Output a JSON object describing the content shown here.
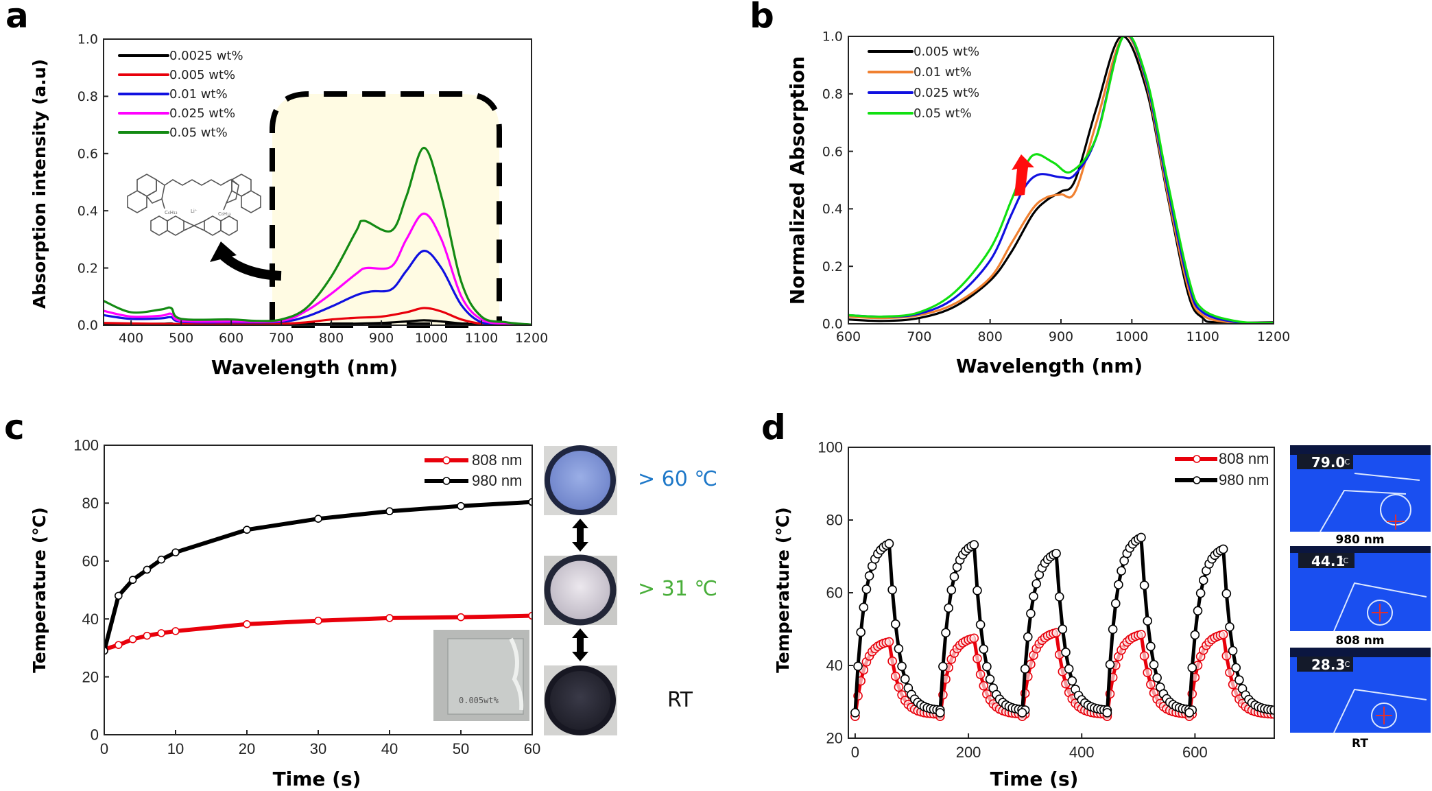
{
  "figure": {
    "panels": [
      "a",
      "b",
      "c",
      "d"
    ]
  },
  "colors": {
    "black": "#000000",
    "red": "#e8000b",
    "blue": "#1010e0",
    "magenta": "#ff00ff",
    "green_dark": "#138a13",
    "orange": "#f08030",
    "green_bright": "#10e010",
    "highlight_fill": "#fffbe3",
    "label_blue": "#1e78c8",
    "label_green": "#49ae3a"
  },
  "chart_data": [
    {
      "panel": "a",
      "type": "line",
      "title": "",
      "xlabel": "Wavelength (nm)",
      "ylabel": "Absorption intensity (a.u)",
      "xlim": [
        345,
        1200
      ],
      "ylim": [
        0.0,
        1.0
      ],
      "xticks": [
        400,
        500,
        600,
        700,
        800,
        900,
        1000,
        1100,
        1200
      ],
      "xtick_labels": [
        "400",
        "500",
        "600",
        "700",
        "800",
        "900",
        "1000",
        "1100",
        "1200"
      ],
      "yticks": [
        0.0,
        0.2,
        0.4,
        0.6,
        0.8,
        1.0
      ],
      "ytick_labels": [
        "0.0",
        "0.2",
        "0.4",
        "0.6",
        "0.8",
        "1.0"
      ],
      "legend_position": "top-left",
      "annotations": [
        "dashed highlight box over 720–1150 nm",
        "curved arrow pointing to molecular structure (cyanine dye cation with Li+ and borate anion)"
      ],
      "series": [
        {
          "name": "0.0025 wt%",
          "color_key": "black",
          "x": [
            345,
            400,
            460,
            480,
            500,
            600,
            700,
            800,
            900,
            950,
            985,
            1020,
            1060,
            1100,
            1200
          ],
          "y": [
            0.005,
            0.004,
            0.005,
            0.006,
            0.003,
            0.003,
            0.003,
            0.004,
            0.008,
            0.013,
            0.017,
            0.013,
            0.006,
            0.002,
            0.001
          ]
        },
        {
          "name": "0.005 wt%",
          "color_key": "red",
          "x": [
            345,
            400,
            500,
            600,
            700,
            750,
            800,
            850,
            900,
            950,
            985,
            1020,
            1060,
            1100,
            1150,
            1200
          ],
          "y": [
            0.008,
            0.006,
            0.004,
            0.004,
            0.005,
            0.01,
            0.02,
            0.026,
            0.03,
            0.045,
            0.06,
            0.048,
            0.02,
            0.005,
            0.002,
            0.001
          ]
        },
        {
          "name": "0.01 wt%",
          "color_key": "blue",
          "x": [
            345,
            400,
            460,
            480,
            500,
            600,
            700,
            750,
            800,
            850,
            880,
            920,
            950,
            985,
            1020,
            1060,
            1100,
            1150,
            1200
          ],
          "y": [
            0.035,
            0.022,
            0.024,
            0.028,
            0.012,
            0.01,
            0.012,
            0.03,
            0.065,
            0.105,
            0.118,
            0.125,
            0.19,
            0.26,
            0.2,
            0.07,
            0.01,
            0.002,
            0.001
          ]
        },
        {
          "name": "0.025 wt%",
          "color_key": "magenta",
          "x": [
            345,
            400,
            460,
            480,
            500,
            600,
            700,
            750,
            800,
            850,
            870,
            920,
            950,
            985,
            1020,
            1060,
            1100,
            1150,
            1200
          ],
          "y": [
            0.05,
            0.03,
            0.033,
            0.04,
            0.015,
            0.013,
            0.015,
            0.05,
            0.11,
            0.18,
            0.2,
            0.205,
            0.3,
            0.39,
            0.3,
            0.1,
            0.02,
            0.004,
            0.001
          ]
        },
        {
          "name": "0.05 wt%",
          "color_key": "green_dark",
          "x": [
            345,
            400,
            460,
            480,
            500,
            600,
            650,
            700,
            750,
            800,
            850,
            865,
            920,
            950,
            985,
            1020,
            1060,
            1100,
            1150,
            1200
          ],
          "y": [
            0.085,
            0.045,
            0.055,
            0.06,
            0.022,
            0.02,
            0.015,
            0.02,
            0.06,
            0.17,
            0.33,
            0.365,
            0.33,
            0.45,
            0.62,
            0.45,
            0.15,
            0.03,
            0.01,
            0.002
          ]
        }
      ]
    },
    {
      "panel": "b",
      "type": "line",
      "title": "",
      "xlabel": "Wavelength (nm)",
      "ylabel": "Normalized Absorption",
      "xlim": [
        600,
        1200
      ],
      "ylim": [
        0.0,
        1.0
      ],
      "xticks": [
        600,
        700,
        800,
        900,
        1000,
        1100,
        1200
      ],
      "xtick_labels": [
        "600",
        "700",
        "800",
        "900",
        "1000",
        "1100",
        "1200"
      ],
      "yticks": [
        0.0,
        0.2,
        0.4,
        0.6,
        0.8,
        1.0
      ],
      "ytick_labels": [
        "0.0",
        "0.2",
        "0.4",
        "0.6",
        "0.8",
        "1.0"
      ],
      "legend_position": "top-left",
      "annotations": [
        "red upward arrow at ~870 nm indicating increase of shoulder peak with concentration"
      ],
      "series": [
        {
          "name": "0.005 wt%",
          "color_key": "black",
          "x": [
            600,
            650,
            700,
            750,
            800,
            830,
            860,
            880,
            900,
            920,
            950,
            985,
            1020,
            1050,
            1080,
            1100,
            1120,
            1200
          ],
          "y": [
            0.015,
            0.01,
            0.02,
            0.06,
            0.15,
            0.25,
            0.38,
            0.43,
            0.46,
            0.5,
            0.75,
            1.0,
            0.82,
            0.45,
            0.1,
            0.02,
            0.005,
            0.005
          ]
        },
        {
          "name": "0.01 wt%",
          "color_key": "orange",
          "x": [
            600,
            650,
            700,
            750,
            800,
            830,
            860,
            880,
            900,
            920,
            950,
            988,
            1020,
            1050,
            1080,
            1100,
            1140,
            1200
          ],
          "y": [
            0.025,
            0.02,
            0.03,
            0.07,
            0.16,
            0.28,
            0.4,
            0.44,
            0.45,
            0.46,
            0.7,
            1.0,
            0.84,
            0.46,
            0.12,
            0.03,
            0.005,
            0.002
          ]
        },
        {
          "name": "0.025 wt%",
          "color_key": "blue",
          "x": [
            600,
            650,
            700,
            750,
            800,
            830,
            850,
            870,
            900,
            920,
            950,
            988,
            1020,
            1050,
            1080,
            1100,
            1150,
            1200
          ],
          "y": [
            0.03,
            0.025,
            0.035,
            0.09,
            0.22,
            0.38,
            0.48,
            0.52,
            0.51,
            0.52,
            0.65,
            1.0,
            0.85,
            0.48,
            0.14,
            0.04,
            0.005,
            0.002
          ]
        },
        {
          "name": "0.05 wt%",
          "color_key": "green_bright",
          "x": [
            600,
            650,
            700,
            750,
            800,
            830,
            850,
            865,
            890,
            915,
            950,
            988,
            1020,
            1050,
            1080,
            1100,
            1150,
            1200
          ],
          "y": [
            0.03,
            0.025,
            0.04,
            0.11,
            0.26,
            0.43,
            0.55,
            0.59,
            0.56,
            0.53,
            0.65,
            1.0,
            0.86,
            0.5,
            0.16,
            0.05,
            0.008,
            0.003
          ]
        }
      ]
    },
    {
      "panel": "c",
      "type": "line",
      "title": "",
      "xlabel": "Time (s)",
      "ylabel": "Temperature (℃)",
      "xlim": [
        0,
        60
      ],
      "ylim": [
        0,
        100
      ],
      "xticks": [
        0,
        10,
        20,
        30,
        40,
        50,
        60
      ],
      "xtick_labels": [
        "0",
        "10",
        "20",
        "30",
        "40",
        "50",
        "60"
      ],
      "yticks": [
        0,
        20,
        40,
        60,
        80,
        100
      ],
      "ytick_labels": [
        "0",
        "20",
        "40",
        "60",
        "80",
        "100"
      ],
      "legend_position": "top-right",
      "markers": "open-circle",
      "series": [
        {
          "name": "808 nm",
          "color_key": "red",
          "x": [
            0,
            2,
            4,
            6,
            8,
            10,
            20,
            30,
            40,
            50,
            60
          ],
          "y": [
            29.5,
            31,
            33,
            34.2,
            35.1,
            35.8,
            38.2,
            39.4,
            40.3,
            40.6,
            41.1
          ]
        },
        {
          "name": "980 nm",
          "color_key": "black",
          "x": [
            0,
            2,
            4,
            6,
            8,
            10,
            20,
            30,
            40,
            50,
            60
          ],
          "y": [
            29,
            48,
            53.5,
            57,
            60.5,
            63,
            70.8,
            74.6,
            77.2,
            79,
            80.4
          ]
        }
      ]
    },
    {
      "panel": "d",
      "type": "line",
      "title": "",
      "xlabel": "Time (s)",
      "ylabel": "Temperature (℃)",
      "xlim": [
        -12,
        740
      ],
      "ylim": [
        20,
        100
      ],
      "xticks": [
        0,
        200,
        400,
        600
      ],
      "xtick_labels": [
        "0",
        "200",
        "400",
        "600"
      ],
      "yticks": [
        20,
        40,
        60,
        80,
        100
      ],
      "ytick_labels": [
        "20",
        "40",
        "60",
        "80",
        "100"
      ],
      "legend_position": "top-right",
      "markers": "open-circle",
      "cycles": 5,
      "cycle_start_times": [
        0,
        150,
        295,
        445,
        590
      ],
      "heating_duration_s": 60,
      "cycle_length_s": 150,
      "series": [
        {
          "name": "808 nm",
          "color_key": "red",
          "cycle_peaks": [
            46.5,
            47.5,
            49.0,
            48.5,
            48.5
          ],
          "cycle_base": 26
        },
        {
          "name": "980 nm",
          "color_key": "black",
          "cycle_peaks": [
            73.5,
            73.2,
            70.8,
            75.2,
            72.0
          ],
          "cycle_base": 27
        }
      ]
    }
  ],
  "panel_c_side": {
    "photos": [
      {
        "label": "> 60 ℃",
        "color_key": "label_blue",
        "fill": "#7f95d8"
      },
      {
        "label": "> 31 ℃",
        "color_key": "label_green",
        "fill": "#d6d1d8"
      },
      {
        "label": "RT",
        "color_key": "black",
        "fill": "#23232f"
      }
    ],
    "inset_film_text": "0.005wt%"
  },
  "panel_d_side": {
    "photos": [
      {
        "reading": "79.0",
        "unit": "°C",
        "caption": "980 nm"
      },
      {
        "reading": "44.1",
        "unit": "°C",
        "caption": "808 nm"
      },
      {
        "reading": "28.3",
        "unit": "°C",
        "caption": "RT"
      }
    ]
  }
}
